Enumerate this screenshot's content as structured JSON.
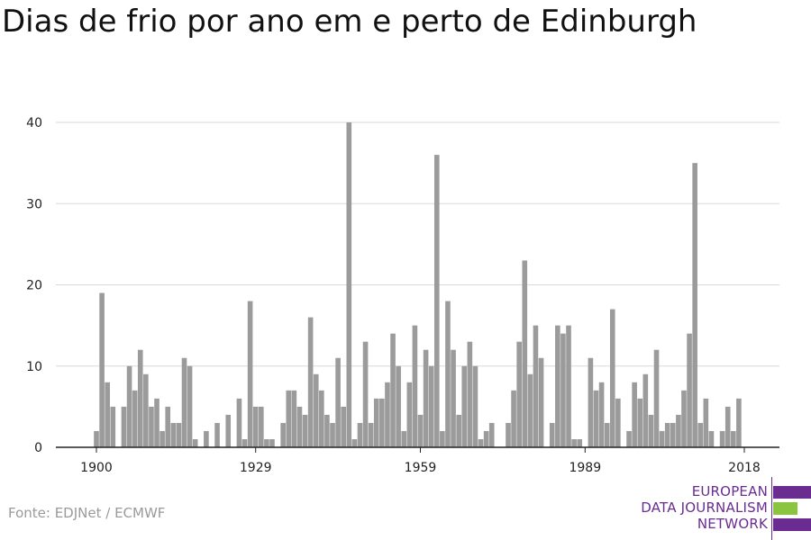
{
  "title": "Dias de frio por ano em e perto de Edinburgh",
  "source": "Fonte: EDJNet / ECMWF",
  "logo": {
    "lines": [
      "EUROPEAN",
      "DATA JOURNALISM",
      "NETWORK"
    ],
    "text_color": "#6a2c91",
    "stripe_colors": [
      "#6a2c91",
      "#8bc53f",
      "#6a2c91"
    ]
  },
  "colors": {
    "bar": "#9b9b9b",
    "grid": "#d9d9d9",
    "axis": "#222222"
  },
  "chart_data": {
    "type": "bar",
    "title": "Dias de frio por ano em e perto de Edinburgh",
    "xlabel": "",
    "ylabel": "",
    "x_ticks": [
      1900,
      1929,
      1959,
      1989,
      2018
    ],
    "y_ticks": [
      0,
      10,
      20,
      30,
      40
    ],
    "ylim": [
      0,
      40
    ],
    "grid": true,
    "legend": "none",
    "x": [
      1900,
      1901,
      1902,
      1903,
      1904,
      1905,
      1906,
      1907,
      1908,
      1909,
      1910,
      1911,
      1912,
      1913,
      1914,
      1915,
      1916,
      1917,
      1918,
      1919,
      1920,
      1921,
      1922,
      1923,
      1924,
      1925,
      1926,
      1927,
      1928,
      1929,
      1930,
      1931,
      1932,
      1933,
      1934,
      1935,
      1936,
      1937,
      1938,
      1939,
      1940,
      1941,
      1942,
      1943,
      1944,
      1945,
      1946,
      1947,
      1948,
      1949,
      1950,
      1951,
      1952,
      1953,
      1954,
      1955,
      1956,
      1957,
      1958,
      1959,
      1960,
      1961,
      1962,
      1963,
      1964,
      1965,
      1966,
      1967,
      1968,
      1969,
      1970,
      1971,
      1972,
      1973,
      1974,
      1975,
      1976,
      1977,
      1978,
      1979,
      1980,
      1981,
      1982,
      1983,
      1984,
      1985,
      1986,
      1987,
      1988,
      1989,
      1990,
      1991,
      1992,
      1993,
      1994,
      1995,
      1996,
      1997,
      1998,
      1999,
      2000,
      2001,
      2002,
      2003,
      2004,
      2005,
      2006,
      2007,
      2008,
      2009,
      2010,
      2011,
      2012,
      2013,
      2014,
      2015,
      2016,
      2017,
      2018
    ],
    "values": [
      2,
      19,
      8,
      5,
      0,
      5,
      10,
      7,
      12,
      9,
      5,
      6,
      2,
      5,
      3,
      3,
      11,
      10,
      1,
      0,
      2,
      0,
      3,
      0,
      4,
      0,
      6,
      1,
      18,
      5,
      5,
      1,
      1,
      0,
      3,
      7,
      7,
      5,
      4,
      16,
      9,
      7,
      4,
      3,
      11,
      5,
      40,
      1,
      3,
      13,
      3,
      6,
      6,
      8,
      14,
      10,
      2,
      8,
      15,
      4,
      12,
      10,
      36,
      2,
      18,
      12,
      4,
      10,
      13,
      10,
      1,
      2,
      3,
      0,
      0,
      3,
      7,
      13,
      23,
      9,
      15,
      11,
      0,
      3,
      15,
      14,
      15,
      1,
      1,
      0,
      11,
      7,
      8,
      3,
      17,
      6,
      0,
      2,
      8,
      6,
      9,
      4,
      12,
      2,
      3,
      3,
      4,
      7,
      14,
      35,
      3,
      6,
      2,
      0,
      2,
      5,
      2,
      6,
      0
    ]
  }
}
